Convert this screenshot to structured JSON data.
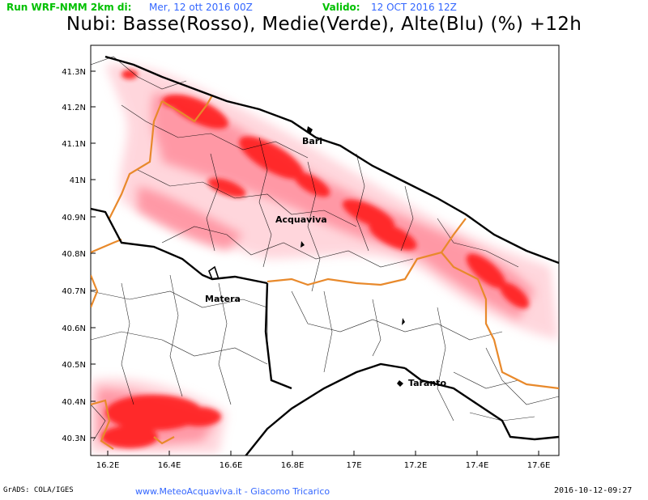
{
  "header": {
    "run_label": "Run WRF-NMM 2km di:",
    "run_date": "Mer, 12 ott 2016 00Z",
    "valid_label": "Valido:",
    "valid_date": "12 OCT 2016 12Z"
  },
  "title": "Nubi: Basse(Rosso), Medie(Verde), Alte(Blu) (%) +12h",
  "axes": {
    "y_ticks": [
      "41.3N",
      "41.2N",
      "41.1N",
      "41N",
      "40.9N",
      "40.8N",
      "40.7N",
      "40.6N",
      "40.5N",
      "40.4N",
      "40.3N"
    ],
    "x_ticks": [
      "16.2E",
      "16.4E",
      "16.6E",
      "16.8E",
      "17E",
      "17.2E",
      "17.4E",
      "17.6E"
    ]
  },
  "cities": {
    "bari": "Bari",
    "acquaviva": "Acquaviva",
    "matera": "Matera",
    "taranto": "Taranto"
  },
  "footer": {
    "left": "GrADS: COLA/IGES",
    "center": "www.MeteoAcquaviva.it  -  Giacomo Tricarico",
    "right": "2016-10-12-09:27"
  },
  "colors": {
    "low_clouds": "#ff0000",
    "region_border": "#e8892b",
    "coastline": "#000000",
    "header_green": "#00c000",
    "header_blue": "#3366ff"
  }
}
